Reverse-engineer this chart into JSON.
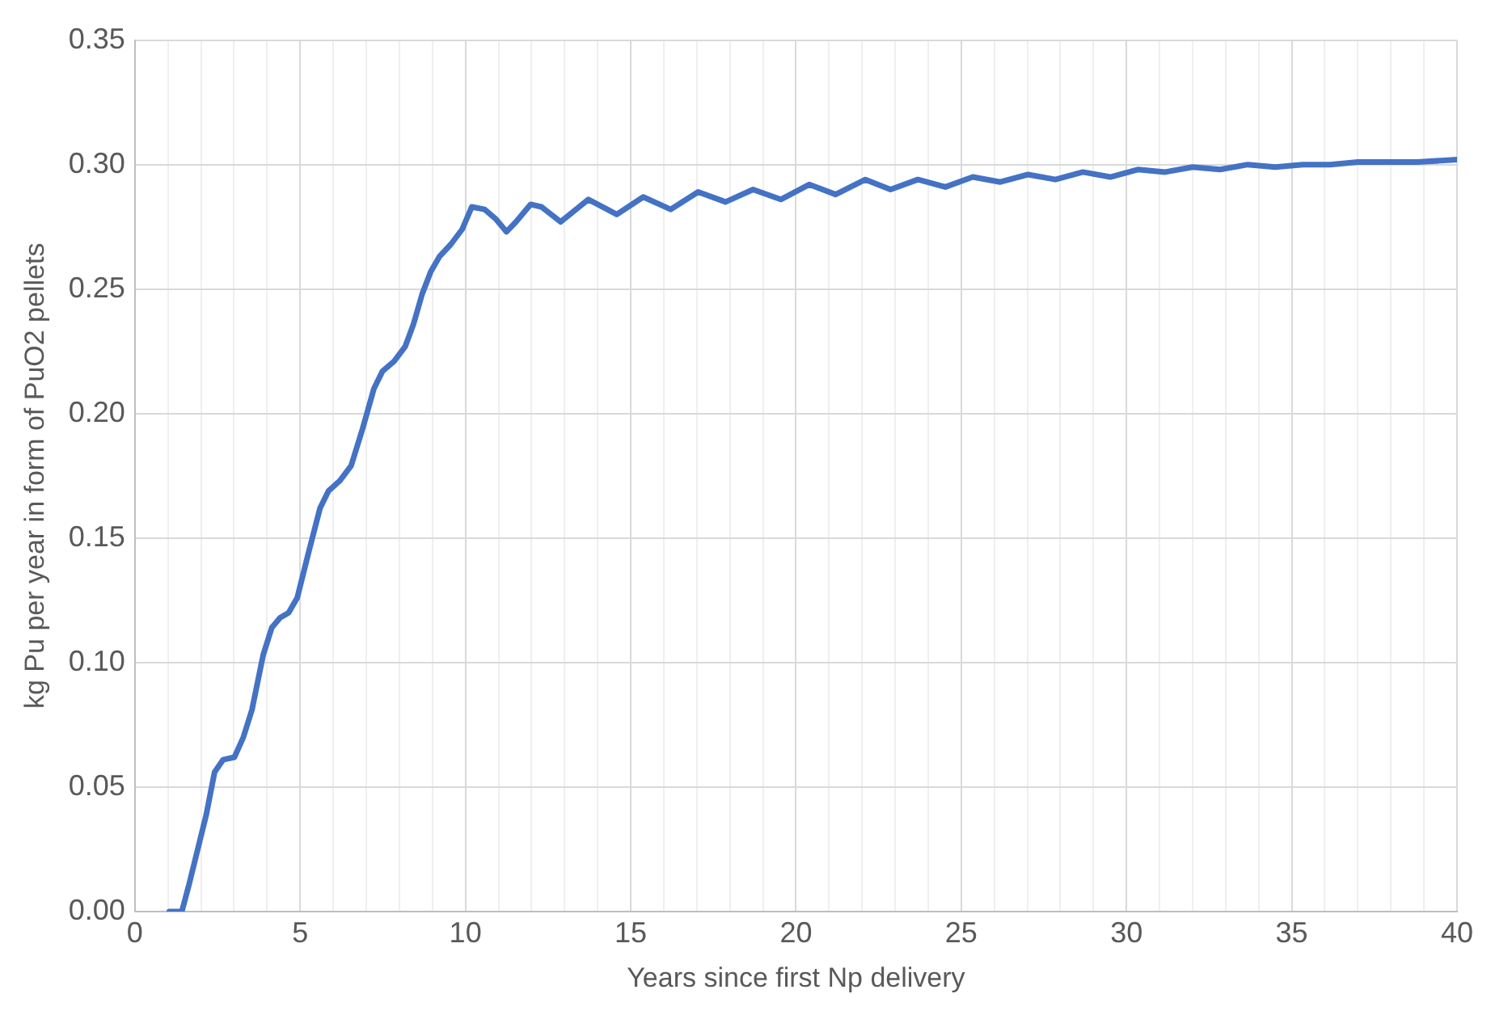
{
  "chart_data": {
    "type": "line",
    "xlabel": "Years since first Np delivery",
    "ylabel": "kg Pu per year in form of PuO2 pellets",
    "grid": true,
    "legend": false,
    "marker": "none",
    "line_style": "solid",
    "xlim": [
      0,
      40
    ],
    "ylim": [
      0,
      0.35
    ],
    "xticks": [
      0,
      {
        "value": 1,
        "label": null
      },
      {
        "value": 2,
        "label": null
      },
      {
        "value": 3,
        "label": null
      },
      {
        "value": 4,
        "label": null
      },
      5,
      {
        "value": 6,
        "label": null
      },
      {
        "value": 7,
        "label": null
      },
      {
        "value": 8,
        "label": null
      },
      {
        "value": 9,
        "label": null
      },
      10,
      {
        "value": 11,
        "label": null
      },
      {
        "value": 12,
        "label": null
      },
      {
        "value": 13,
        "label": null
      },
      {
        "value": 14,
        "label": null
      },
      15,
      {
        "value": 16,
        "label": null
      },
      {
        "value": 17,
        "label": null
      },
      {
        "value": 18,
        "label": null
      },
      {
        "value": 19,
        "label": null
      },
      20,
      {
        "value": 21,
        "label": null
      },
      {
        "value": 22,
        "label": null
      },
      {
        "value": 23,
        "label": null
      },
      {
        "value": 24,
        "label": null
      },
      25,
      {
        "value": 26,
        "label": null
      },
      {
        "value": 27,
        "label": null
      },
      {
        "value": 28,
        "label": null
      },
      {
        "value": 29,
        "label": null
      },
      30,
      {
        "value": 31,
        "label": null
      },
      {
        "value": 32,
        "label": null
      },
      {
        "value": 33,
        "label": null
      },
      {
        "value": 34,
        "label": null
      },
      35,
      {
        "value": 36,
        "label": null
      },
      {
        "value": 37,
        "label": null
      },
      {
        "value": 38,
        "label": null
      },
      {
        "value": 39,
        "label": null
      },
      40
    ],
    "yticks": [
      {
        "value": 0,
        "label": "0.00"
      },
      {
        "value": 0.05,
        "label": "0.05"
      },
      {
        "value": 0.1,
        "label": "0.10"
      },
      {
        "value": 0.15,
        "label": "0.15"
      },
      {
        "value": 0.2,
        "label": "0.20"
      },
      {
        "value": 0.25,
        "label": "0.25"
      },
      {
        "value": 0.3,
        "label": "0.30"
      },
      {
        "value": 0.35,
        "label": "0.35"
      }
    ],
    "series": [
      {
        "color": "#4472c4",
        "x": [
          1.04,
          1.42,
          1.64,
          1.9,
          2.16,
          2.41,
          2.67,
          3.01,
          3.28,
          3.54,
          3.88,
          4.14,
          4.39,
          4.65,
          4.91,
          5.25,
          5.6,
          5.86,
          6.2,
          6.54,
          6.89,
          7.23,
          7.49,
          7.84,
          8.18,
          8.43,
          8.69,
          8.95,
          9.21,
          9.56,
          9.9,
          10.19,
          10.58,
          10.93,
          11.24,
          11.53,
          11.97,
          12.3,
          12.88,
          13.72,
          14.58,
          15.38,
          16.21,
          17.04,
          17.87,
          18.7,
          19.54,
          20.4,
          21.2,
          22.1,
          22.86,
          23.69,
          24.52,
          25.35,
          26.18,
          27.02,
          27.85,
          28.68,
          29.51,
          30.34,
          31.17,
          32.0,
          32.83,
          33.67,
          34.5,
          35.33,
          36.16,
          37.0,
          38.0,
          38.8,
          40.0
        ],
        "values": [
          0,
          0,
          0.011,
          0.025,
          0.039,
          0.056,
          0.061,
          0.062,
          0.07,
          0.081,
          0.103,
          0.114,
          0.118,
          0.12,
          0.126,
          0.144,
          0.162,
          0.169,
          0.173,
          0.179,
          0.194,
          0.21,
          0.217,
          0.221,
          0.227,
          0.236,
          0.248,
          0.257,
          0.263,
          0.268,
          0.274,
          0.283,
          0.282,
          0.278,
          0.273,
          0.277,
          0.284,
          0.283,
          0.277,
          0.286,
          0.28,
          0.287,
          0.282,
          0.289,
          0.285,
          0.29,
          0.286,
          0.292,
          0.288,
          0.294,
          0.29,
          0.294,
          0.291,
          0.295,
          0.293,
          0.296,
          0.294,
          0.297,
          0.295,
          0.298,
          0.297,
          0.299,
          0.298,
          0.3,
          0.299,
          0.3,
          0.3,
          0.301,
          0.301,
          0.301,
          0.302
        ]
      }
    ]
  }
}
